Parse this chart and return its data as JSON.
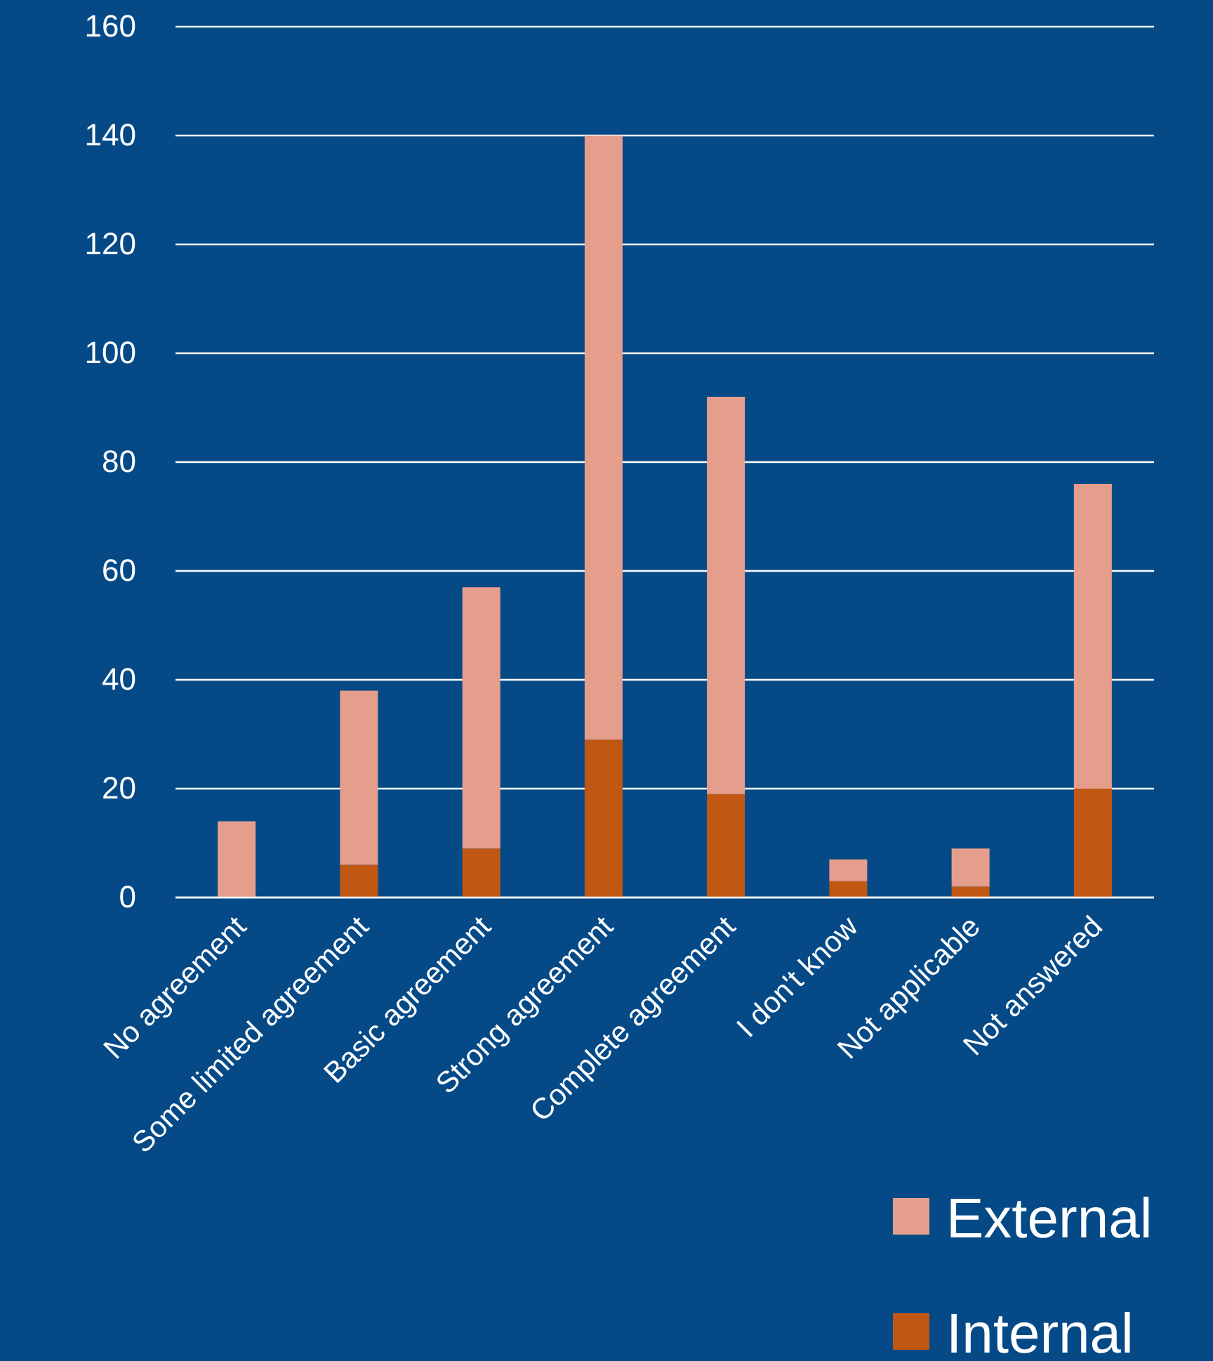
{
  "chart_data": {
    "type": "bar",
    "stacked": true,
    "categories": [
      "No agreement",
      "Some limited agreement",
      "Basic agreement",
      "Strong agreement",
      "Complete agreement",
      "I don't know",
      "Not applicable",
      "Not answered"
    ],
    "series": [
      {
        "name": "Internal",
        "color": "#c05813",
        "values": [
          0,
          6,
          9,
          29,
          19,
          3,
          2,
          20
        ]
      },
      {
        "name": "External",
        "color": "#e59e8b",
        "values": [
          14,
          32,
          48,
          111,
          73,
          4,
          7,
          56
        ]
      }
    ],
    "ylim": [
      0,
      160
    ],
    "yticks": [
      0,
      20,
      40,
      60,
      80,
      100,
      120,
      140,
      160
    ],
    "grid": "y",
    "legend": "bottom right"
  }
}
